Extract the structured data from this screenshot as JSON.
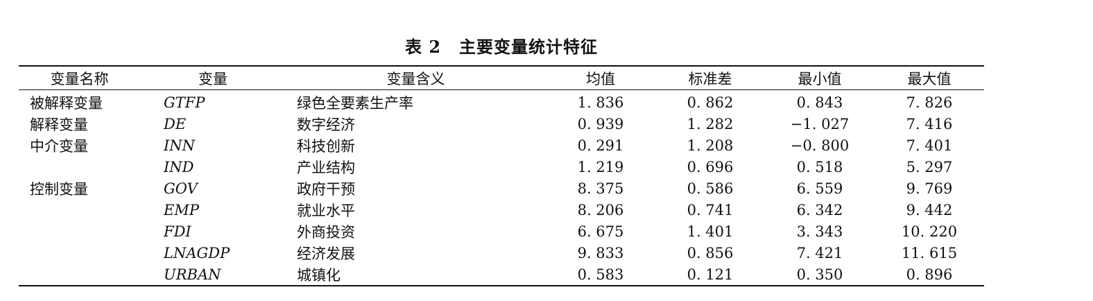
{
  "caption": {
    "number": "表 2",
    "title": "主要变量统计特征"
  },
  "headers": [
    "变量名称",
    "变量",
    "变量含义",
    "均值",
    "标准差",
    "最小值",
    "最大值"
  ],
  "rows": [
    {
      "category": "被解释变量",
      "variable": "GTFP",
      "meaning": "绿色全要素生产率",
      "mean": "1. 836",
      "sd": "0. 862",
      "min": "0. 843",
      "max": "7. 826"
    },
    {
      "category": "解释变量",
      "variable": "DE",
      "meaning": "数字经济",
      "mean": "0. 939",
      "sd": "1. 282",
      "min": "−1. 027",
      "max": "7. 416"
    },
    {
      "category": "中介变量",
      "variable": "INN",
      "meaning": "科技创新",
      "mean": "0. 291",
      "sd": "1. 208",
      "min": "−0. 800",
      "max": "7. 401"
    },
    {
      "category": "",
      "variable": "IND",
      "meaning": "产业结构",
      "mean": "1. 219",
      "sd": "0. 696",
      "min": "0. 518",
      "max": "5. 297"
    },
    {
      "category": "控制变量",
      "variable": "GOV",
      "meaning": "政府干预",
      "mean": "8. 375",
      "sd": "0. 586",
      "min": "6. 559",
      "max": "9. 769"
    },
    {
      "category": "",
      "variable": "EMP",
      "meaning": "就业水平",
      "mean": "8. 206",
      "sd": "0. 741",
      "min": "6. 342",
      "max": "9. 442"
    },
    {
      "category": "",
      "variable": "FDI",
      "meaning": "外商投资",
      "mean": "6. 675",
      "sd": "1. 401",
      "min": "3. 343",
      "max": "10. 220"
    },
    {
      "category": "",
      "variable": "LNAGDP",
      "meaning": "经济发展",
      "mean": "9. 833",
      "sd": "0. 856",
      "min": "7. 421",
      "max": "11. 615"
    },
    {
      "category": "",
      "variable": "URBAN",
      "meaning": "城镇化",
      "mean": "0. 583",
      "sd": "0. 121",
      "min": "0. 350",
      "max": "0. 896"
    }
  ]
}
